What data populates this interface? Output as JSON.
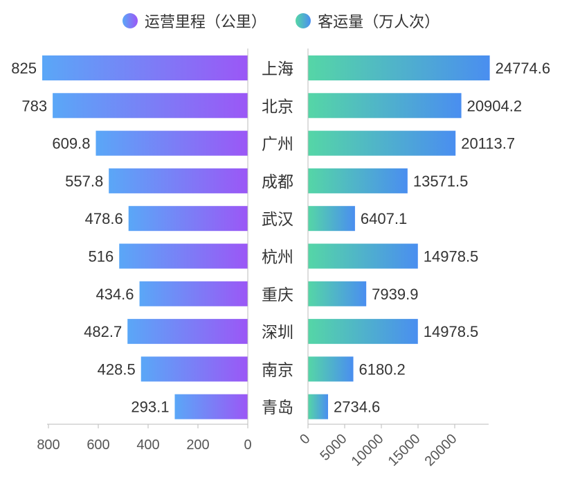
{
  "chart_data": {
    "type": "bar",
    "layout": "back-to-back horizontal bar",
    "legend_position": "top-center",
    "categories": [
      "上海",
      "北京",
      "广州",
      "成都",
      "武汉",
      "杭州",
      "重庆",
      "深圳",
      "南京",
      "青岛"
    ],
    "series": [
      {
        "name": "运营里程（公里）",
        "values": [
          825,
          783,
          609.8,
          557.8,
          478.6,
          516,
          434.6,
          482.7,
          428.5,
          293.1
        ],
        "value_labels": [
          "825",
          "783",
          "609.8",
          "557.8",
          "478.6",
          "516",
          "434.6",
          "482.7",
          "428.5",
          "293.1"
        ],
        "xlim": [
          0,
          850
        ],
        "ticks": [
          800,
          600,
          400,
          200,
          0
        ],
        "direction": "left",
        "gradient": [
          "#5aa7f7",
          "#9b57f6"
        ]
      },
      {
        "name": "客运量（万人次）",
        "values": [
          24774.6,
          20904.2,
          20113.7,
          13571.5,
          6407.1,
          14978.5,
          7939.9,
          14978.5,
          6180.2,
          2734.6
        ],
        "value_labels": [
          "24774.6",
          "20904.2",
          "20113.7",
          "13571.5",
          "6407.1",
          "14978.5",
          "7939.9",
          "14978.5",
          "6180.2",
          "2734.6"
        ],
        "xlim": [
          0,
          25000
        ],
        "ticks": [
          0,
          5000,
          10000,
          15000,
          20000
        ],
        "direction": "right",
        "gradient": [
          "#55d6a6",
          "#4a8ef0"
        ]
      }
    ],
    "grid": false
  }
}
